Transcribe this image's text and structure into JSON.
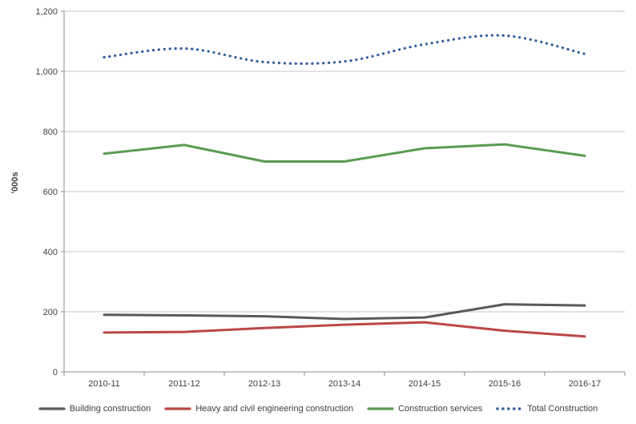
{
  "chart_data": {
    "type": "line",
    "title": "",
    "ylabel": "'000s",
    "xlabel": "",
    "categories": [
      "2010-11",
      "2011-12",
      "2012-13",
      "2013-14",
      "2014-15",
      "2015-16",
      "2016-17"
    ],
    "series": [
      {
        "name": "Building construction",
        "color": "#595959",
        "line_style": "solid",
        "values": [
          190,
          188,
          185,
          176,
          181,
          225,
          221
        ]
      },
      {
        "name": "Heavy and civil engineering construction",
        "color": "#bb4744",
        "line_style": "solid",
        "values": [
          131,
          133,
          146,
          157,
          165,
          137,
          118
        ]
      },
      {
        "name": "Construction services",
        "color": "#5a9b53",
        "line_style": "solid",
        "values": [
          726,
          755,
          700,
          700,
          744,
          757,
          719
        ]
      },
      {
        "name": "Total Construction",
        "color": "#2d5c9c",
        "line_style": "dotted",
        "values": [
          1047,
          1076,
          1031,
          1033,
          1090,
          1119,
          1058
        ]
      }
    ],
    "ylim": [
      0,
      1200
    ],
    "ytick_step": 200,
    "ytick_labels": [
      "0",
      "200",
      "400",
      "600",
      "800",
      "1,000",
      "1,200"
    ],
    "grid": true,
    "legend_position": "bottom"
  },
  "colors": {
    "background": "#ffffff",
    "gridline": "#c6c6c6",
    "axis": "#8c8c8c",
    "text": "#3f3f3f"
  }
}
